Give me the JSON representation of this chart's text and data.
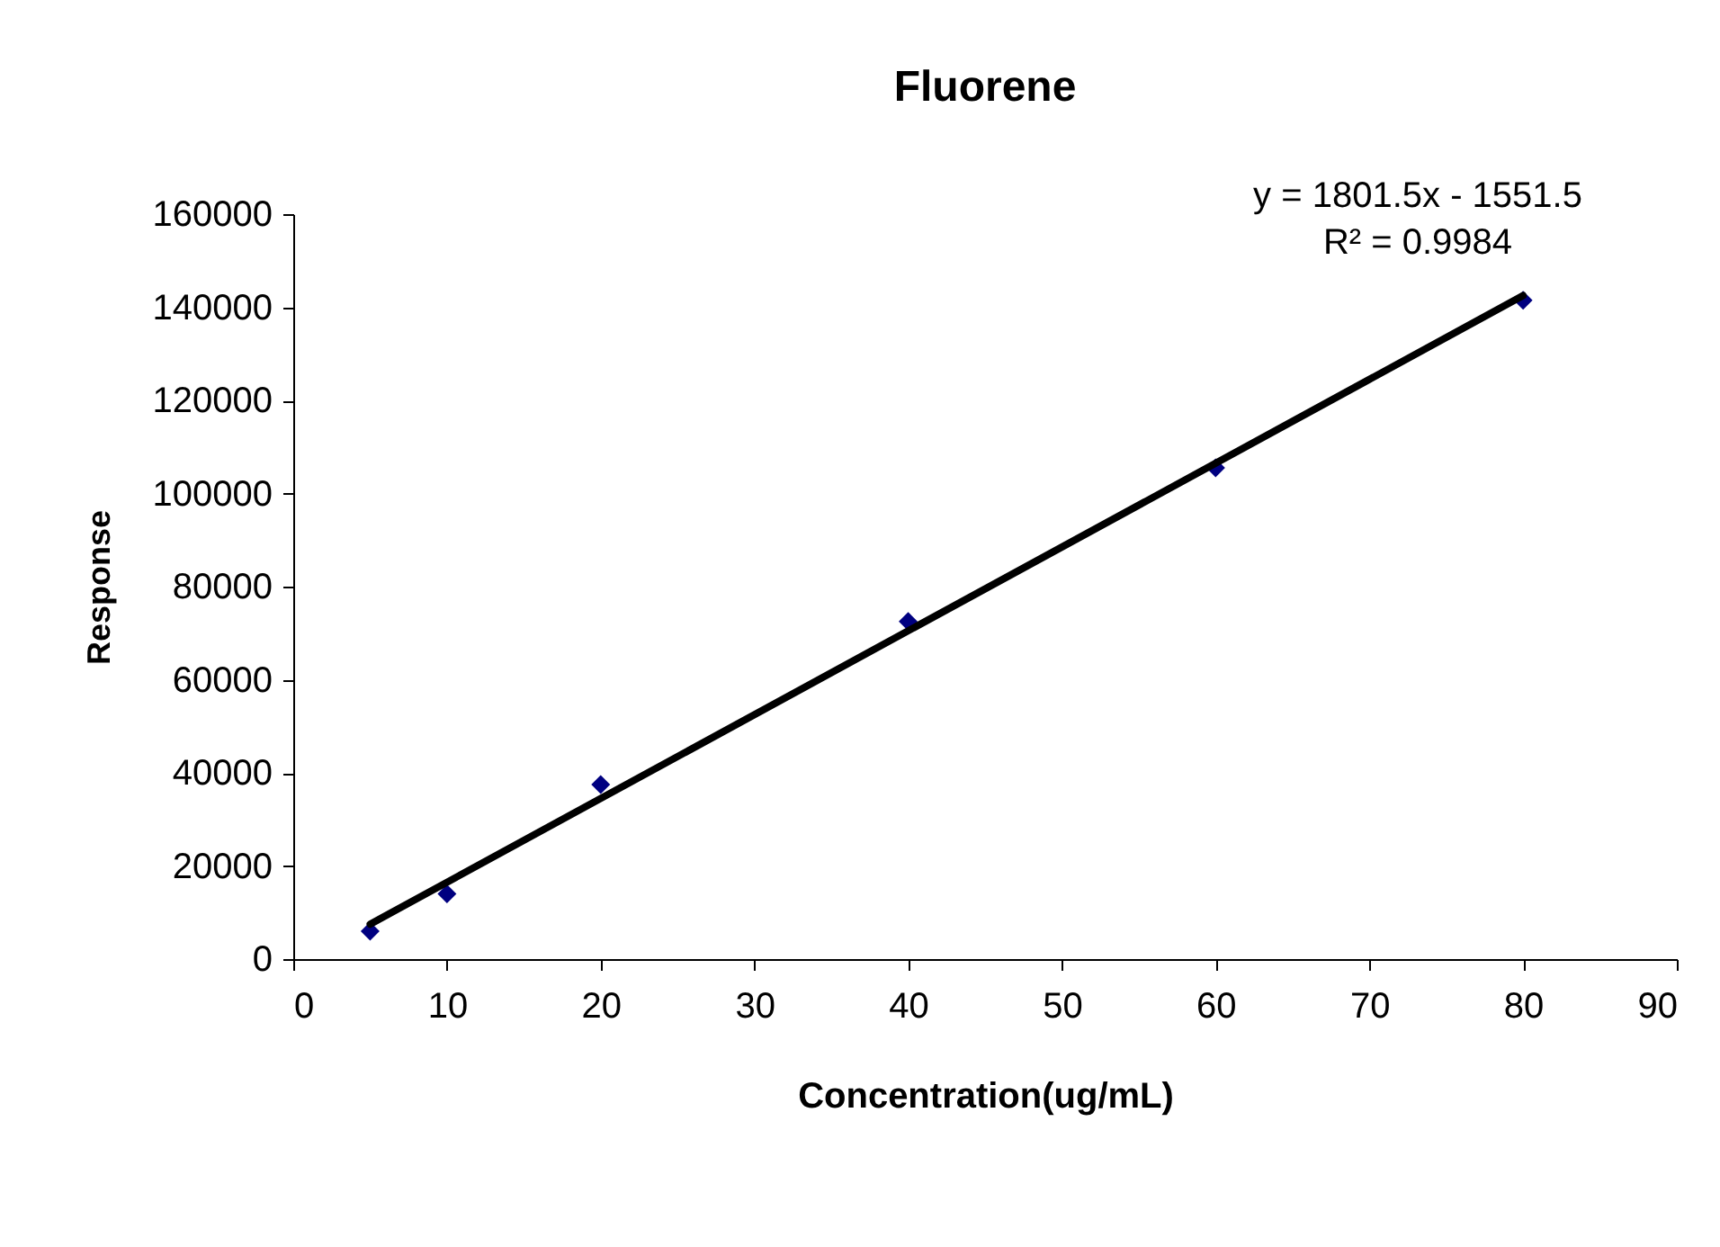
{
  "chart_data": {
    "type": "scatter",
    "title": "Fluorene",
    "xlabel": "Concentration(ug/mL)",
    "ylabel": "Response",
    "xlim": [
      0,
      90
    ],
    "xticks": [
      0,
      10,
      20,
      30,
      40,
      50,
      60,
      70,
      80,
      90
    ],
    "ylim": [
      0,
      160000
    ],
    "yticks": [
      0,
      20000,
      40000,
      60000,
      80000,
      100000,
      120000,
      140000,
      160000
    ],
    "series": [
      {
        "color": "#000080",
        "marker": "diamond",
        "x": [
          5,
          10,
          20,
          40,
          60,
          80
        ],
        "values": [
          6000,
          14000,
          37500,
          72500,
          105500,
          141500
        ]
      },
      {
        "type": "line",
        "color": "#000000",
        "marker": "none",
        "line_style": "solid",
        "x": [
          5,
          80
        ],
        "values": [
          7500,
          142500
        ]
      }
    ],
    "annotations": [
      "y = 1801.5x - 1551.5",
      "R² = 0.9984"
    ],
    "grid": false
  }
}
